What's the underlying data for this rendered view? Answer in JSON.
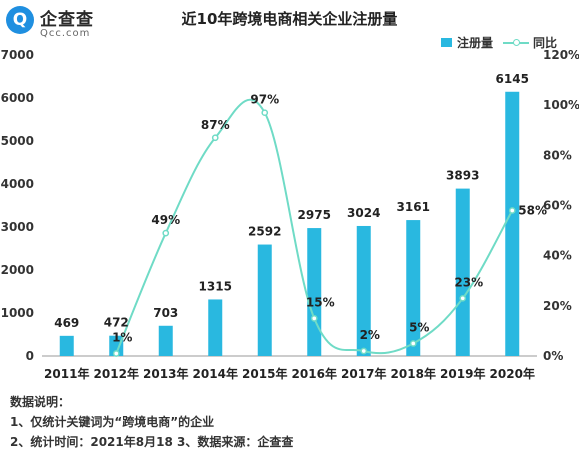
{
  "logo": {
    "glyph": "Q",
    "name": "企查查",
    "domain": "Qcc.com"
  },
  "chart_data": {
    "type": "bar",
    "title": "近10年跨境电商相关企业注册量",
    "categories": [
      "2011年",
      "2012年",
      "2013年",
      "2014年",
      "2015年",
      "2016年",
      "2017年",
      "2018年",
      "2019年",
      "2020年"
    ],
    "series": [
      {
        "name": "注册量",
        "type": "bar",
        "axis": "left",
        "values": [
          469,
          472,
          703,
          1315,
          2592,
          2975,
          3024,
          3161,
          3893,
          6145
        ]
      },
      {
        "name": "同比",
        "type": "line",
        "axis": "right",
        "values": [
          null,
          1,
          49,
          87,
          97,
          15,
          2,
          5,
          23,
          58
        ]
      }
    ],
    "data_labels": {
      "bar": [
        "469",
        "472",
        "703",
        "1315",
        "2592",
        "2975",
        "3024",
        "3161",
        "3893",
        "6145"
      ],
      "line": [
        "",
        "1%",
        "49%",
        "87%",
        "97%",
        "15%",
        "2%",
        "5%",
        "23%",
        "58%"
      ]
    },
    "y_left": {
      "min": 0,
      "max": 7000,
      "ticks": [
        "0",
        "1000",
        "2000",
        "3000",
        "4000",
        "5000",
        "6000",
        "7000"
      ]
    },
    "y_right": {
      "min": 0,
      "max": 120,
      "ticks": [
        "0%",
        "20%",
        "40%",
        "60%",
        "80%",
        "100%",
        "120%"
      ]
    },
    "legend_placement": "top-right",
    "grid": false,
    "colors": {
      "bar": "#29b8e0",
      "line": "#6fdbc6"
    }
  },
  "notes": {
    "heading": "数据说明：",
    "line1": "1、仅统计关键词为“跨境电商”的企业",
    "line2": "2、统计时间：2021年8月18  3、数据来源：企查查"
  }
}
